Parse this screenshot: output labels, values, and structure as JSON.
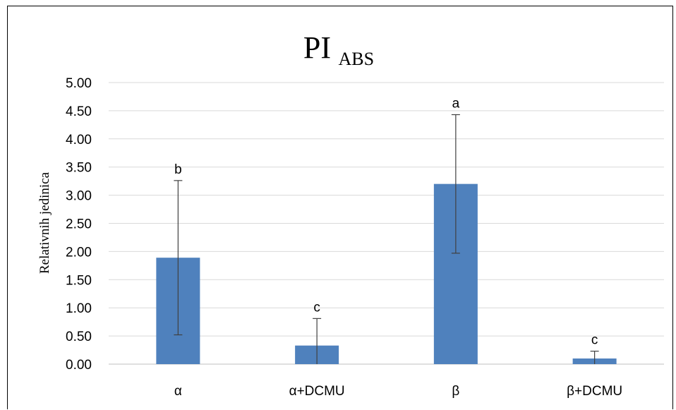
{
  "chart_data": {
    "type": "bar",
    "title": "PI",
    "title_subscript": "ABS",
    "xlabel": "",
    "ylabel": "Relativnih jedinica",
    "ylim": [
      0,
      5
    ],
    "yticks": [
      "0.00",
      "0.50",
      "1.00",
      "1.50",
      "2.00",
      "2.50",
      "3.00",
      "3.50",
      "4.00",
      "4.50",
      "5.00"
    ],
    "grid": true,
    "categories": [
      "α",
      "α+DCMU",
      "β",
      "β+DCMU"
    ],
    "values": [
      1.89,
      0.33,
      3.2,
      0.1
    ],
    "errors": [
      1.37,
      0.48,
      1.23,
      0.13
    ],
    "significance_letters": [
      "b",
      "c",
      "a",
      "c"
    ],
    "colors": {
      "bar": "#4f81bd",
      "grid": "#d9d9d9",
      "axis": "#bfbfbf",
      "error_bar": "#404040"
    }
  }
}
